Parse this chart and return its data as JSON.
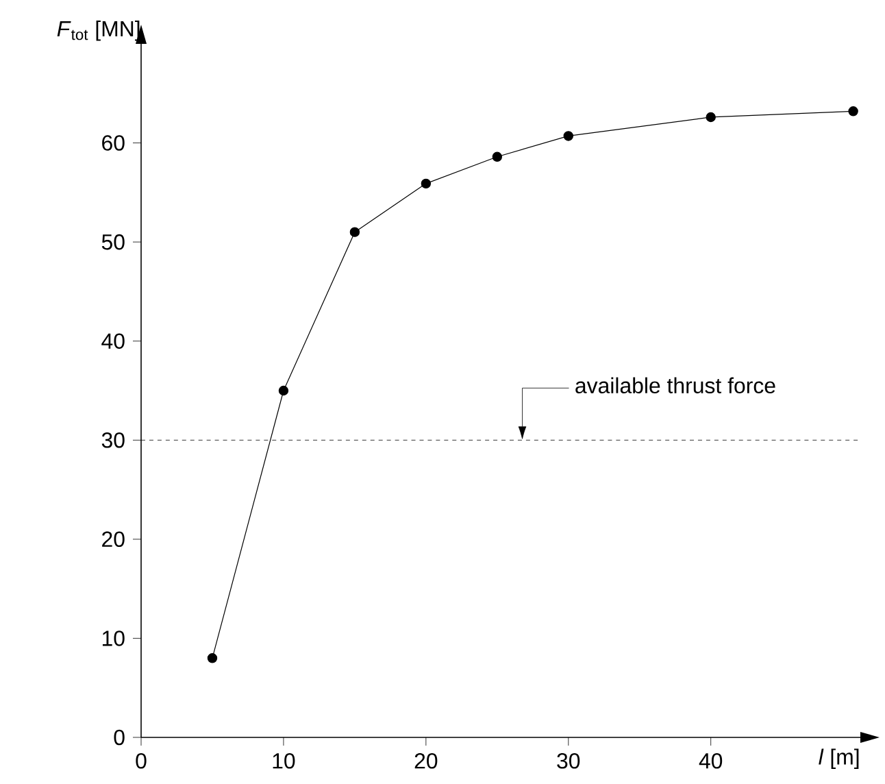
{
  "chart_data": {
    "type": "line",
    "xlabel": "*l* [m]",
    "ylabel": "*F*$_{tot}$ [MN]",
    "x": [
      5,
      10,
      15,
      20,
      25,
      30,
      40,
      50
    ],
    "series": [
      {
        "color": "#000000",
        "values": [
          8,
          35,
          51,
          55.9,
          58.6,
          60.7,
          62.6,
          63.2
        ]
      }
    ],
    "xlim": [
      0,
      50.5
    ],
    "ylim": [
      0,
      70
    ],
    "xticks": [
      0,
      10,
      20,
      30,
      40
    ],
    "yticks": [
      0,
      10,
      20,
      30,
      40,
      50,
      60
    ],
    "marker": "circle",
    "line_style": "solid",
    "ref_lines": [
      {
        "axis": "y",
        "value": 30,
        "line_style": "dashed",
        "color": "#000000",
        "label": "available thrust force"
      }
    ]
  }
}
